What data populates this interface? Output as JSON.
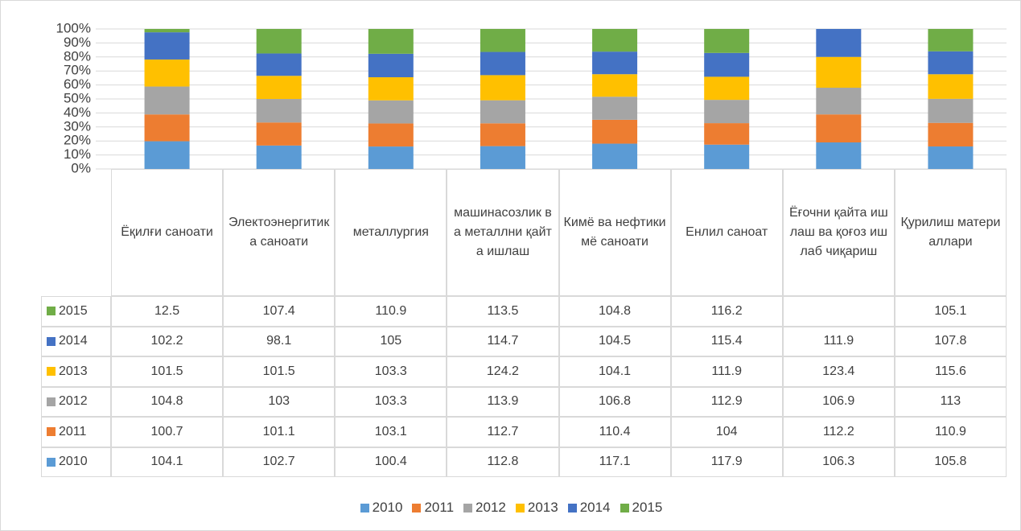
{
  "chart_data": {
    "type": "stacked_bar_100",
    "categories": [
      "Ёқилғи саноати",
      "Электоэнергитика саноати",
      "металлургия",
      "машинасозлик ва металлни қайта ишлаш",
      "Кимё ва нефтикимё саноати",
      "Енлил саноат",
      "Ёғочни қайта ишлаш ва қоғоз ишлаб чиқариш",
      "Қурилиш материаллари"
    ],
    "series": [
      {
        "name": "2010",
        "color": "#5b9bd5",
        "values": [
          104.1,
          102.7,
          100.4,
          112.8,
          117.1,
          117.9,
          106.3,
          105.8
        ]
      },
      {
        "name": "2011",
        "color": "#ed7d31",
        "values": [
          100.7,
          101.1,
          103.1,
          112.7,
          110.4,
          104,
          112.2,
          110.9
        ]
      },
      {
        "name": "2012",
        "color": "#a5a5a5",
        "values": [
          104.8,
          103,
          103.3,
          113.9,
          106.8,
          112.9,
          106.9,
          113
        ]
      },
      {
        "name": "2013",
        "color": "#ffc000",
        "values": [
          101.5,
          101.5,
          103.3,
          124.2,
          104.1,
          111.9,
          123.4,
          115.6
        ]
      },
      {
        "name": "2014",
        "color": "#4472c4",
        "values": [
          102.2,
          98.1,
          105,
          114.7,
          104.5,
          115.4,
          111.9,
          107.8
        ]
      },
      {
        "name": "2015",
        "color": "#70ad47",
        "values": [
          12.5,
          107.4,
          110.9,
          113.5,
          104.8,
          116.2,
          null,
          105.1
        ]
      }
    ],
    "ylim": [
      0,
      100
    ],
    "yticks": [
      {
        "value": 0,
        "label": "0%"
      },
      {
        "value": 10,
        "label": "10%"
      },
      {
        "value": 20,
        "label": "20%"
      },
      {
        "value": 30,
        "label": "30%"
      },
      {
        "value": 40,
        "label": "40%"
      },
      {
        "value": 50,
        "label": "50%"
      },
      {
        "value": 60,
        "label": "60%"
      },
      {
        "value": 70,
        "label": "70%"
      },
      {
        "value": 80,
        "label": "80%"
      },
      {
        "value": 90,
        "label": "90%"
      },
      {
        "value": 100,
        "label": "100%"
      }
    ],
    "grid": true,
    "legend": "bottom"
  }
}
